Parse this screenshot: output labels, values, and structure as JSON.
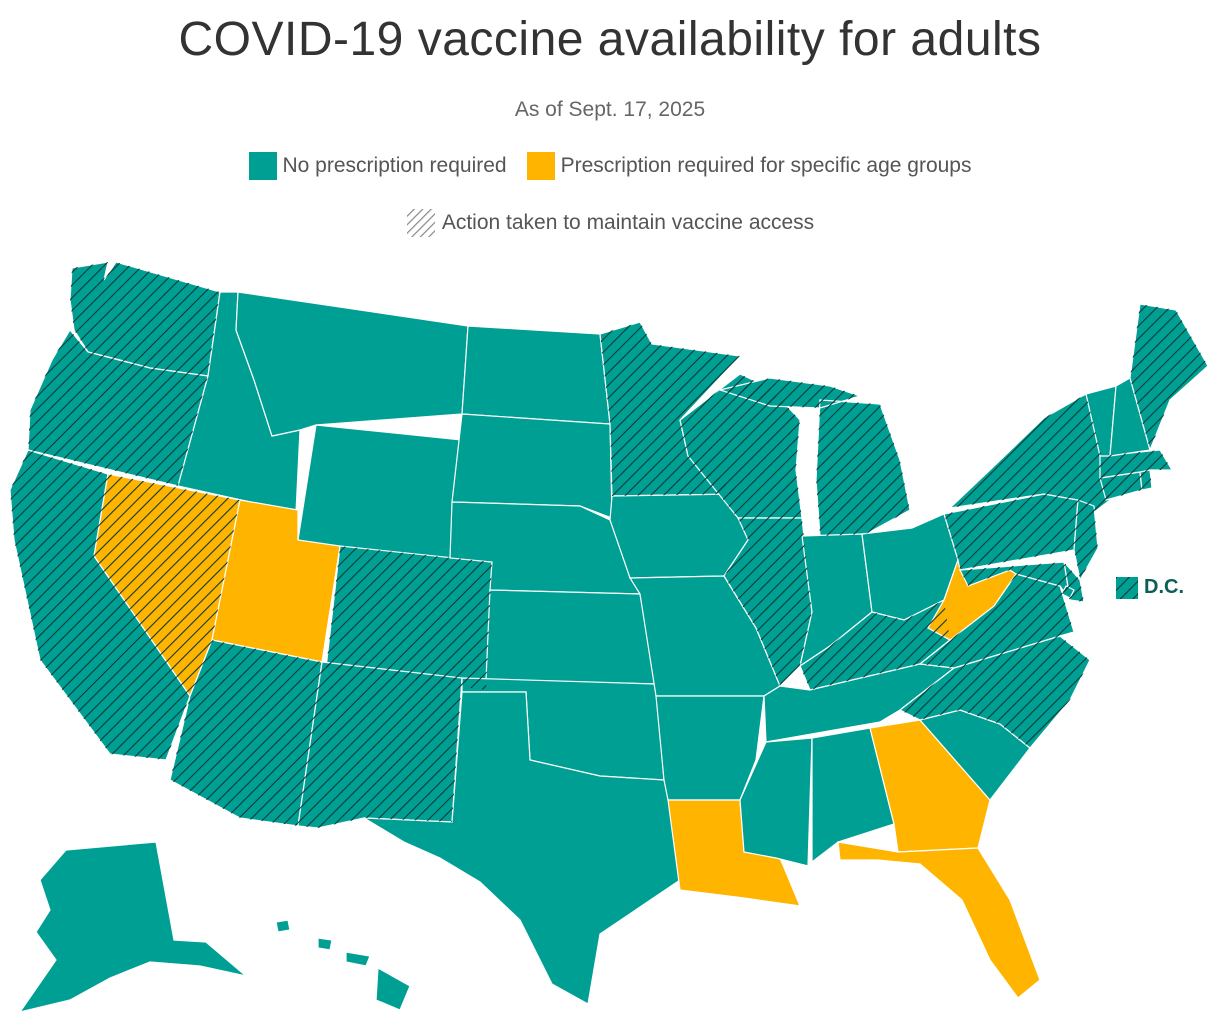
{
  "title": "COVID-19 vaccine availability for adults",
  "subtitle": "As of Sept. 17, 2025",
  "legend": {
    "no_rx": "No prescription required",
    "rx_age": "Prescription required for specific age groups",
    "action": "Action taken to maintain vaccine access"
  },
  "colors": {
    "no_rx": "#009f93",
    "rx_age": "#ffb400",
    "hatch": "#0b3b37",
    "border": "#ffffff"
  },
  "dc_label": "D.C.",
  "states": {
    "WA": {
      "category": "no_rx",
      "action": true
    },
    "OR": {
      "category": "no_rx",
      "action": true
    },
    "CA": {
      "category": "no_rx",
      "action": true
    },
    "NV": {
      "category": "rx_age",
      "action": true
    },
    "ID": {
      "category": "no_rx",
      "action": false
    },
    "MT": {
      "category": "no_rx",
      "action": false
    },
    "WY": {
      "category": "no_rx",
      "action": false
    },
    "UT": {
      "category": "rx_age",
      "action": false
    },
    "AZ": {
      "category": "no_rx",
      "action": true
    },
    "CO": {
      "category": "no_rx",
      "action": true
    },
    "NM": {
      "category": "no_rx",
      "action": true
    },
    "ND": {
      "category": "no_rx",
      "action": false
    },
    "SD": {
      "category": "no_rx",
      "action": false
    },
    "NE": {
      "category": "no_rx",
      "action": false
    },
    "KS": {
      "category": "no_rx",
      "action": false
    },
    "OK": {
      "category": "no_rx",
      "action": false
    },
    "TX": {
      "category": "no_rx",
      "action": false
    },
    "MN": {
      "category": "no_rx",
      "action": true
    },
    "IA": {
      "category": "no_rx",
      "action": false
    },
    "MO": {
      "category": "no_rx",
      "action": false
    },
    "AR": {
      "category": "no_rx",
      "action": false
    },
    "LA": {
      "category": "rx_age",
      "action": false
    },
    "WI": {
      "category": "no_rx",
      "action": true
    },
    "IL": {
      "category": "no_rx",
      "action": true
    },
    "MI": {
      "category": "no_rx",
      "action": true
    },
    "IN": {
      "category": "no_rx",
      "action": false
    },
    "OH": {
      "category": "no_rx",
      "action": false
    },
    "KY": {
      "category": "no_rx",
      "action": true
    },
    "TN": {
      "category": "no_rx",
      "action": false
    },
    "MS": {
      "category": "no_rx",
      "action": false
    },
    "AL": {
      "category": "no_rx",
      "action": false
    },
    "GA": {
      "category": "rx_age",
      "action": false
    },
    "FL": {
      "category": "rx_age",
      "action": false
    },
    "SC": {
      "category": "no_rx",
      "action": false
    },
    "NC": {
      "category": "no_rx",
      "action": true
    },
    "VA": {
      "category": "no_rx",
      "action": true
    },
    "WV": {
      "category": "rx_age",
      "action": false
    },
    "PA": {
      "category": "no_rx",
      "action": true
    },
    "NY": {
      "category": "no_rx",
      "action": true
    },
    "NJ": {
      "category": "no_rx",
      "action": true
    },
    "DE": {
      "category": "no_rx",
      "action": true
    },
    "MD": {
      "category": "no_rx",
      "action": true
    },
    "CT": {
      "category": "no_rx",
      "action": true
    },
    "RI": {
      "category": "no_rx",
      "action": true
    },
    "MA": {
      "category": "no_rx",
      "action": true
    },
    "VT": {
      "category": "no_rx",
      "action": false
    },
    "NH": {
      "category": "no_rx",
      "action": false
    },
    "ME": {
      "category": "no_rx",
      "action": true
    },
    "AK": {
      "category": "no_rx",
      "action": false
    },
    "HI": {
      "category": "no_rx",
      "action": false
    },
    "DC": {
      "category": "no_rx",
      "action": true
    }
  }
}
